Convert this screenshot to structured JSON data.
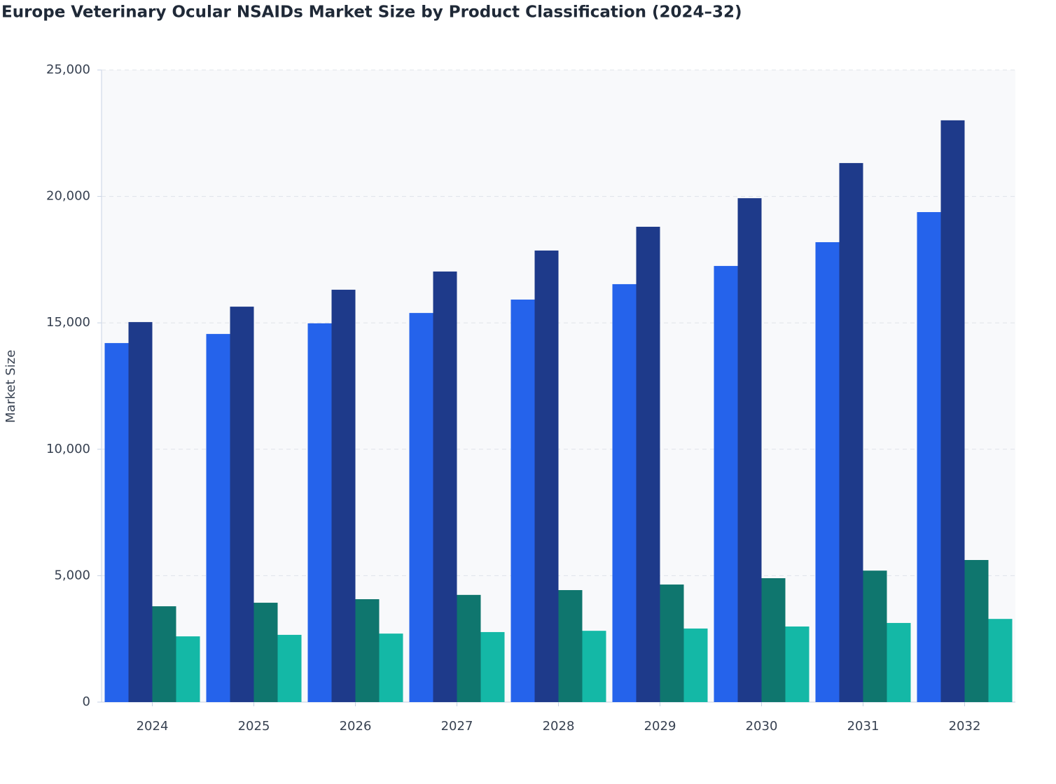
{
  "chart_data": {
    "type": "bar",
    "title": "Europe Veterinary Ocular NSAIDs Market Size by Product Classification (2024–32)",
    "y_label": "Market Size",
    "categories": [
      "2024",
      "2025",
      "2026",
      "2027",
      "2028",
      "2029",
      "2030",
      "2031",
      "2032"
    ],
    "series": [
      {
        "color": "#2563eb",
        "values": [
          14200,
          14560,
          14980,
          15390,
          15920,
          16530,
          17250,
          18190,
          19380
        ]
      },
      {
        "color": "#1e3a8a",
        "values": [
          15030,
          15640,
          16310,
          17030,
          17860,
          18800,
          19930,
          21320,
          23010
        ]
      },
      {
        "color": "#0f766e",
        "values": [
          3790,
          3930,
          4070,
          4240,
          4430,
          4650,
          4900,
          5200,
          5620
        ]
      },
      {
        "color": "#14b8a6",
        "values": [
          2600,
          2660,
          2710,
          2770,
          2820,
          2910,
          2990,
          3130,
          3290
        ]
      }
    ],
    "ylim": [
      0,
      25000
    ],
    "yticks": [
      0,
      {
        "value": 5000,
        "label": "5,000"
      },
      {
        "value": 10000,
        "label": "10,000"
      },
      {
        "value": 15000,
        "label": "15,000"
      },
      {
        "value": 20000,
        "label": "20,000"
      },
      {
        "value": 25000,
        "label": "25,000"
      }
    ],
    "grid": true
  }
}
